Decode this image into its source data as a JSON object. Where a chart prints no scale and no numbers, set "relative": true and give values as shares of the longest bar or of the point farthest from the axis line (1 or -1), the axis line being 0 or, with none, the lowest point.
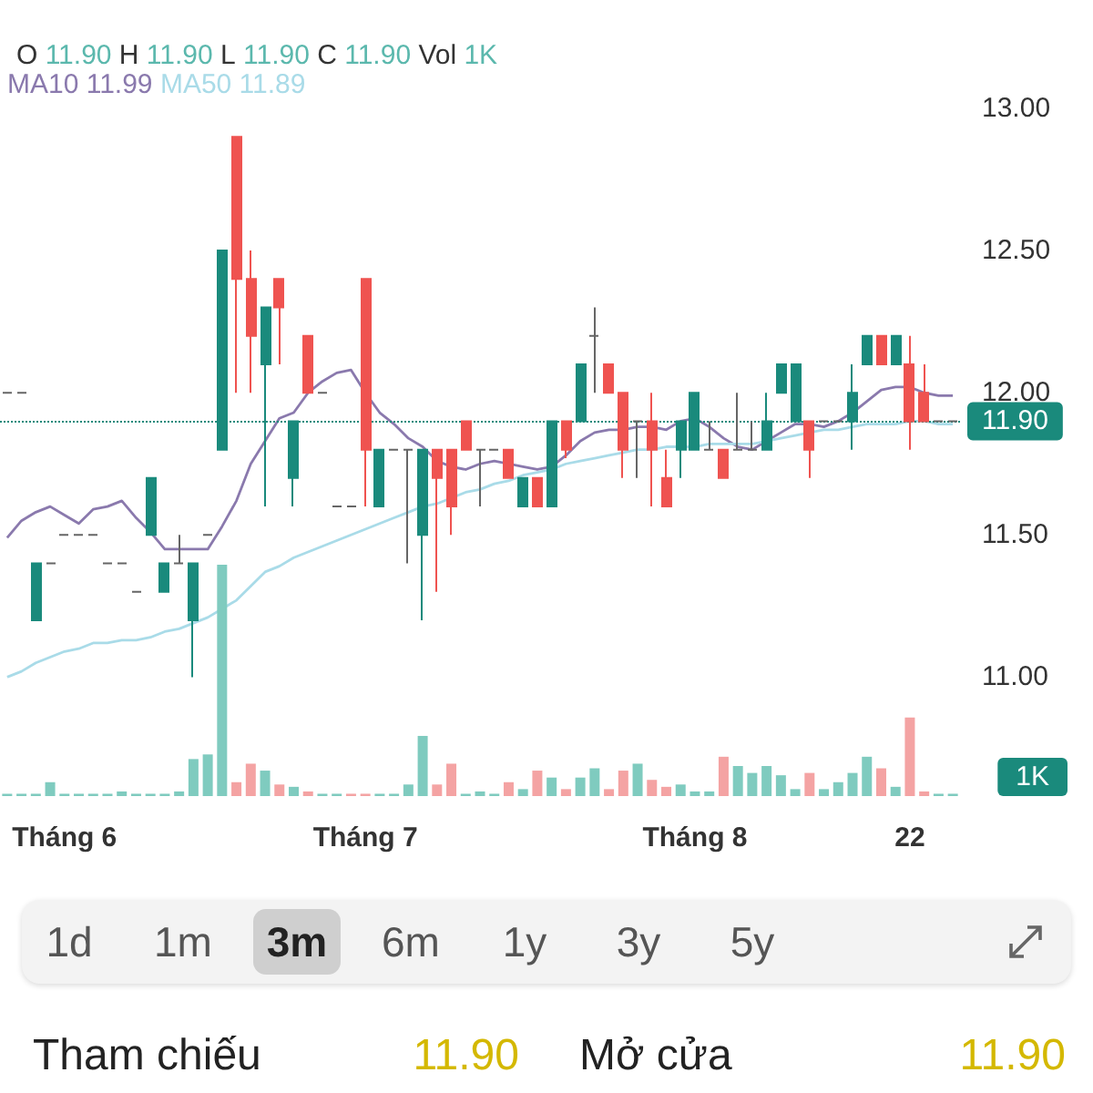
{
  "chart_data": [
    {
      "type": "candlestick",
      "title": "O 11.90 H 11.90 L 11.90 C 11.90 Vol 1K",
      "categories": [
        null,
        null,
        null,
        null,
        "Tháng 6",
        null,
        null,
        null,
        null,
        null,
        null,
        null,
        null,
        null,
        null,
        null,
        null,
        null,
        null,
        null,
        null,
        null,
        null,
        null,
        null,
        "Tháng 7",
        null,
        null,
        null,
        null,
        null,
        null,
        null,
        null,
        null,
        null,
        null,
        null,
        null,
        null,
        null,
        null,
        null,
        null,
        null,
        null,
        null,
        null,
        "Tháng 8",
        null,
        null,
        null,
        null,
        null,
        null,
        null,
        null,
        null,
        null,
        null,
        null,
        null,
        null,
        "22",
        null,
        null,
        null
      ],
      "ohlc": [
        [
          12,
          12,
          12,
          12
        ],
        [
          12,
          12,
          12,
          12
        ],
        [
          11.2,
          11.4,
          11.2,
          11.4
        ],
        [
          11.4,
          11.4,
          11.4,
          11.4
        ],
        [
          11.5,
          11.5,
          11.5,
          11.5
        ],
        [
          11.5,
          11.5,
          11.5,
          11.5
        ],
        [
          11.5,
          11.5,
          11.5,
          11.5
        ],
        [
          11.4,
          11.4,
          11.4,
          11.4
        ],
        [
          11.4,
          11.4,
          11.4,
          11.4
        ],
        [
          11.3,
          11.3,
          11.3,
          11.3
        ],
        [
          11.5,
          11.7,
          11.5,
          11.7
        ],
        [
          11.3,
          11.4,
          11.3,
          11.4
        ],
        [
          11.4,
          11.5,
          11.4,
          11.4
        ],
        [
          11.2,
          11.4,
          11.0,
          11.4
        ],
        [
          11.5,
          11.5,
          11.5,
          11.5
        ],
        [
          11.8,
          12.5,
          11.8,
          12.5
        ],
        [
          12.9,
          12.9,
          12.0,
          12.4
        ],
        [
          12.4,
          12.5,
          12.0,
          12.2
        ],
        [
          12.1,
          12.3,
          11.6,
          12.3
        ],
        [
          12.4,
          12.4,
          12.1,
          12.3
        ],
        [
          11.7,
          11.9,
          11.6,
          11.9
        ],
        [
          12.2,
          12.2,
          12.0,
          12.0
        ],
        [
          12,
          12,
          12,
          12
        ],
        [
          11.6,
          11.6,
          11.6,
          11.6
        ],
        [
          11.6,
          11.6,
          11.6,
          11.6
        ],
        [
          12.4,
          12.4,
          11.6,
          11.8
        ],
        [
          11.6,
          11.8,
          11.6,
          11.8
        ],
        [
          11.8,
          11.8,
          11.8,
          11.8
        ],
        [
          11.8,
          11.8,
          11.4,
          11.8
        ],
        [
          11.5,
          11.8,
          11.2,
          11.8
        ],
        [
          11.8,
          11.8,
          11.3,
          11.7
        ],
        [
          11.8,
          11.8,
          11.5,
          11.6
        ],
        [
          11.9,
          11.9,
          11.8,
          11.8
        ],
        [
          11.8,
          11.8,
          11.6,
          11.8
        ],
        [
          11.8,
          11.8,
          11.8,
          11.8
        ],
        [
          11.8,
          11.8,
          11.7,
          11.7
        ],
        [
          11.6,
          11.7,
          11.6,
          11.7
        ],
        [
          11.7,
          11.7,
          11.6,
          11.6
        ],
        [
          11.6,
          11.9,
          11.6,
          11.9
        ],
        [
          11.9,
          11.9,
          11.77,
          11.8
        ],
        [
          11.9,
          12.1,
          11.9,
          12.1
        ],
        [
          12.2,
          12.3,
          12.0,
          12.2
        ],
        [
          12.1,
          12.1,
          12.0,
          12.0
        ],
        [
          12.0,
          12.0,
          11.7,
          11.8
        ],
        [
          11.9,
          11.9,
          11.7,
          11.9
        ],
        [
          11.9,
          12.0,
          11.6,
          11.8
        ],
        [
          11.7,
          11.8,
          11.6,
          11.6
        ],
        [
          11.8,
          11.9,
          11.7,
          11.9
        ],
        [
          11.8,
          12.0,
          11.8,
          12.0
        ],
        [
          11.8,
          11.9,
          11.8,
          11.8
        ],
        [
          11.8,
          11.8,
          11.7,
          11.7
        ],
        [
          11.8,
          12.0,
          11.8,
          11.8
        ],
        [
          11.8,
          11.9,
          11.8,
          11.8
        ],
        [
          11.8,
          12.0,
          11.8,
          11.9
        ],
        [
          12.0,
          12.1,
          12.0,
          12.1
        ],
        [
          11.9,
          12.1,
          11.9,
          12.1
        ],
        [
          11.9,
          11.9,
          11.7,
          11.8
        ],
        [
          11.9,
          11.9,
          11.9,
          11.9
        ],
        [
          11.9,
          11.9,
          11.9,
          11.9
        ],
        [
          11.9,
          12.1,
          11.8,
          12.0
        ],
        [
          12.1,
          12.2,
          12.1,
          12.2
        ],
        [
          12.2,
          12.2,
          12.1,
          12.1
        ],
        [
          12.1,
          12.2,
          12.1,
          12.2
        ],
        [
          12.1,
          12.2,
          11.8,
          11.9
        ],
        [
          12.0,
          12.1,
          11.9,
          11.9
        ],
        [
          11.9,
          11.9,
          11.9,
          11.9
        ],
        [
          11.9,
          11.9,
          11.9,
          11.9
        ]
      ],
      "colors": [
        "#666666",
        "#666666",
        "#1a8a7c",
        "#666666",
        "#666666",
        "#666666",
        "#666666",
        "#666666",
        "#666666",
        "#666666",
        "#1a8a7c",
        "#1a8a7c",
        "#666666",
        "#1a8a7c",
        "#666666",
        "#1a8a7c",
        "#ef5350",
        "#ef5350",
        "#1a8a7c",
        "#ef5350",
        "#1a8a7c",
        "#ef5350",
        "#666666",
        "#666666",
        "#666666",
        "#ef5350",
        "#1a8a7c",
        "#666666",
        "#666666",
        "#1a8a7c",
        "#ef5350",
        "#ef5350",
        "#ef5350",
        "#666666",
        "#666666",
        "#ef5350",
        "#1a8a7c",
        "#ef5350",
        "#1a8a7c",
        "#ef5350",
        "#1a8a7c",
        "#666666",
        "#ef5350",
        "#ef5350",
        "#666666",
        "#ef5350",
        "#ef5350",
        "#1a8a7c",
        "#1a8a7c",
        "#666666",
        "#ef5350",
        "#666666",
        "#666666",
        "#1a8a7c",
        "#1a8a7c",
        "#1a8a7c",
        "#ef5350",
        "#666666",
        "#666666",
        "#1a8a7c",
        "#1a8a7c",
        "#ef5350",
        "#1a8a7c",
        "#ef5350",
        "#ef5350",
        "#666666",
        "#666666"
      ],
      "series": [
        {
          "name": "MA10",
          "type": "line",
          "color": "#8a79ad",
          "values": [
            11.49,
            11.55,
            11.58,
            11.6,
            11.57,
            11.54,
            11.59,
            11.6,
            11.62,
            11.56,
            11.51,
            11.45,
            11.45,
            11.45,
            11.45,
            11.53,
            11.62,
            11.75,
            11.83,
            11.91,
            11.93,
            12.0,
            12.04,
            12.07,
            12.08,
            12.0,
            11.93,
            11.89,
            11.84,
            11.81,
            11.76,
            11.74,
            11.73,
            11.75,
            11.76,
            11.75,
            11.74,
            11.73,
            11.74,
            11.78,
            11.83,
            11.86,
            11.87,
            11.87,
            11.88,
            11.88,
            11.87,
            11.9,
            11.91,
            11.88,
            11.84,
            11.81,
            11.8,
            11.83,
            11.86,
            11.89,
            11.89,
            11.88,
            11.9,
            11.93,
            11.97,
            12.01,
            12.02,
            12.02,
            12.0,
            11.99,
            11.99
          ]
        },
        {
          "name": "MA50",
          "type": "line",
          "color": "#a9dbe8",
          "values": [
            11.0,
            11.02,
            11.05,
            11.07,
            11.09,
            11.1,
            11.12,
            11.12,
            11.13,
            11.13,
            11.14,
            11.16,
            11.17,
            11.19,
            11.21,
            11.24,
            11.27,
            11.32,
            11.37,
            11.39,
            11.42,
            11.44,
            11.46,
            11.48,
            11.5,
            11.52,
            11.54,
            11.56,
            11.58,
            11.6,
            11.61,
            11.63,
            11.65,
            11.66,
            11.68,
            11.69,
            11.71,
            11.72,
            11.73,
            11.75,
            11.76,
            11.77,
            11.78,
            11.79,
            11.8,
            11.8,
            11.81,
            11.81,
            11.81,
            11.82,
            11.82,
            11.82,
            11.82,
            11.83,
            11.84,
            11.85,
            11.86,
            11.87,
            11.87,
            11.88,
            11.89,
            11.89,
            11.89,
            11.9,
            11.9,
            11.89,
            11.89
          ]
        }
      ],
      "ylim": [
        11,
        13
      ],
      "yticks": [
        {
          "value": 11,
          "label": "11.00"
        },
        {
          "value": 11.5,
          "label": "11.50"
        },
        {
          "value": 12,
          "label": "12.00"
        },
        {
          "value": 12.5,
          "label": "12.50"
        },
        {
          "value": 13,
          "label": "13.00"
        }
      ],
      "ref_lines": [
        {
          "axis": "y",
          "value": 11.9,
          "label": "11.90",
          "color": "#1a8a7c",
          "line_style": "dotted"
        }
      ],
      "marker": "none",
      "annotations": [
        "11.99",
        "11.89",
        "1d",
        "1m",
        "3m",
        "6m",
        "1y",
        "3y",
        "5y",
        "Tham chiếu",
        "11.90",
        "Mở cửa",
        "11.90"
      ]
    },
    {
      "type": "bar",
      "relative": true,
      "categories": [
        null,
        null,
        null,
        null,
        null,
        null,
        null,
        null,
        null,
        null,
        null,
        null,
        null,
        null,
        null,
        null,
        null,
        null,
        null,
        null,
        null,
        null,
        null,
        null,
        null,
        null,
        null,
        null,
        null,
        null,
        null,
        null,
        null,
        null,
        null,
        null,
        null,
        null,
        null,
        null,
        null,
        null,
        null,
        null,
        null,
        null,
        null,
        null,
        null,
        null,
        null,
        null,
        null,
        null,
        null,
        null,
        null,
        null,
        null,
        null,
        null,
        null,
        null,
        null,
        null,
        null,
        null
      ],
      "values": [
        0.01,
        0.01,
        0.01,
        0.06,
        0.01,
        0.01,
        0.01,
        0.01,
        0.02,
        0.01,
        0.01,
        0.01,
        0.02,
        0.16,
        0.18,
        1,
        0.06,
        0.14,
        0.11,
        0.05,
        0.04,
        0.02,
        0.01,
        0.01,
        0.01,
        0.01,
        0.01,
        0.01,
        0.05,
        0.26,
        0.05,
        0.14,
        0.01,
        0.02,
        0.01,
        0.06,
        0.03,
        0.11,
        0.08,
        0.03,
        0.08,
        0.12,
        0.03,
        0.11,
        0.14,
        0.07,
        0.04,
        0.05,
        0.02,
        0.02,
        0.17,
        0.13,
        0.1,
        0.13,
        0.09,
        0.03,
        0.1,
        0.03,
        0.06,
        0.1,
        0.17,
        0.12,
        0.04,
        0.34,
        0.02,
        0.01,
        0.01
      ],
      "colors": [
        "#7fcbbf",
        "#7fcbbf",
        "#7fcbbf",
        "#7fcbbf",
        "#7fcbbf",
        "#7fcbbf",
        "#7fcbbf",
        "#7fcbbf",
        "#7fcbbf",
        "#7fcbbf",
        "#7fcbbf",
        "#7fcbbf",
        "#7fcbbf",
        "#7fcbbf",
        "#7fcbbf",
        "#7fcbbf",
        "#f4a3a3",
        "#f4a3a3",
        "#7fcbbf",
        "#f4a3a3",
        "#7fcbbf",
        "#f4a3a3",
        "#7fcbbf",
        "#7fcbbf",
        "#f4a3a3",
        "#f4a3a3",
        "#7fcbbf",
        "#7fcbbf",
        "#7fcbbf",
        "#7fcbbf",
        "#f4a3a3",
        "#f4a3a3",
        "#7fcbbf",
        "#7fcbbf",
        "#7fcbbf",
        "#f4a3a3",
        "#7fcbbf",
        "#f4a3a3",
        "#7fcbbf",
        "#f4a3a3",
        "#7fcbbf",
        "#7fcbbf",
        "#f4a3a3",
        "#f4a3a3",
        "#7fcbbf",
        "#f4a3a3",
        "#f4a3a3",
        "#7fcbbf",
        "#7fcbbf",
        "#7fcbbf",
        "#f4a3a3",
        "#7fcbbf",
        "#7fcbbf",
        "#7fcbbf",
        "#7fcbbf",
        "#7fcbbf",
        "#f4a3a3",
        "#7fcbbf",
        "#7fcbbf",
        "#7fcbbf",
        "#7fcbbf",
        "#f4a3a3",
        "#7fcbbf",
        "#f4a3a3",
        "#f4a3a3",
        "#7fcbbf",
        "#7fcbbf"
      ],
      "annotations": [
        "1K"
      ]
    }
  ]
}
